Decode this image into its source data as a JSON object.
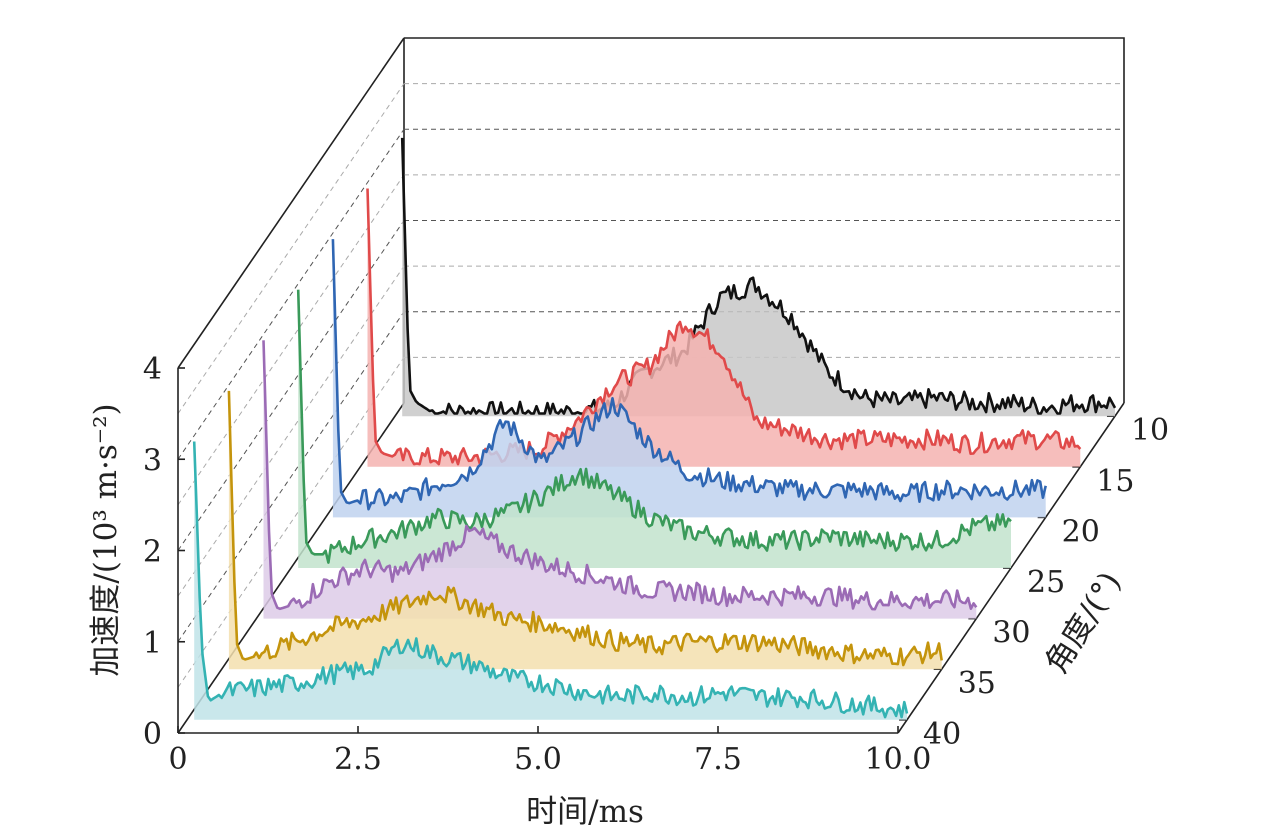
{
  "chart_data": {
    "type": "line",
    "style": "3d-waterfall",
    "title": "",
    "xlabel": "时间/ms",
    "ylabel": "加速度/(10³ m·s⁻²)",
    "zlabel": "角度/(°)",
    "xlim": [
      0,
      10.0
    ],
    "ylim": [
      0,
      4
    ],
    "x_ticks": [
      "0",
      "2.5",
      "5.0",
      "7.5",
      "10.0"
    ],
    "y_ticks": [
      "0",
      "1",
      "2",
      "3",
      "4"
    ],
    "z_ticks": [
      "10",
      "15",
      "20",
      "25",
      "30",
      "35",
      "40"
    ],
    "grid": true,
    "fill_under": true,
    "x": [
      0.1,
      0.2,
      0.3,
      0.5,
      1.0,
      1.5,
      2.0,
      2.5,
      3.0,
      3.5,
      4.0,
      4.5,
      5.0,
      5.5,
      6.0,
      6.5,
      7.0,
      7.5,
      8.0,
      8.5,
      9.0,
      9.5,
      10.0
    ],
    "series": [
      {
        "name": "10",
        "color": "#111111",
        "fill": "#c8c8c8",
        "values": [
          3.05,
          0.3,
          0.15,
          0.05,
          0.05,
          0.05,
          0.05,
          0.05,
          0.1,
          0.5,
          0.7,
          1.3,
          1.45,
          1.1,
          0.5,
          0.2,
          0.15,
          0.2,
          0.15,
          0.15,
          0.1,
          0.15,
          0.15
        ]
      },
      {
        "name": "15",
        "color": "#e04a4a",
        "fill": "#f4b3b0",
        "values": [
          3.05,
          0.3,
          0.15,
          0.1,
          0.1,
          0.1,
          0.15,
          0.2,
          0.5,
          0.9,
          1.1,
          1.6,
          1.3,
          0.5,
          0.4,
          0.3,
          0.3,
          0.3,
          0.3,
          0.25,
          0.3,
          0.3,
          0.25
        ]
      },
      {
        "name": "20",
        "color": "#2f66b3",
        "fill": "#bfd2ee",
        "values": [
          3.05,
          0.3,
          0.15,
          0.2,
          0.2,
          0.35,
          0.5,
          1.05,
          0.6,
          0.9,
          1.25,
          0.8,
          0.5,
          0.4,
          0.35,
          0.3,
          0.3,
          0.3,
          0.25,
          0.3,
          0.3,
          0.3,
          0.3
        ]
      },
      {
        "name": "25",
        "color": "#3a9a5a",
        "fill": "#c2e3cd",
        "values": [
          3.05,
          0.3,
          0.15,
          0.15,
          0.3,
          0.4,
          0.55,
          0.5,
          0.6,
          0.8,
          1.05,
          0.8,
          0.55,
          0.4,
          0.35,
          0.3,
          0.3,
          0.35,
          0.3,
          0.3,
          0.3,
          0.45,
          0.5
        ]
      },
      {
        "name": "30",
        "color": "#9b6bb5",
        "fill": "#ddcbe8",
        "values": [
          3.05,
          0.3,
          0.1,
          0.15,
          0.4,
          0.55,
          0.5,
          0.7,
          0.95,
          0.75,
          0.6,
          0.5,
          0.4,
          0.3,
          0.3,
          0.25,
          0.25,
          0.25,
          0.25,
          0.2,
          0.2,
          0.2,
          0.2
        ]
      },
      {
        "name": "35",
        "color": "#c4940c",
        "fill": "#f3dfae",
        "values": [
          3.05,
          0.3,
          0.1,
          0.15,
          0.3,
          0.45,
          0.55,
          0.7,
          0.85,
          0.7,
          0.55,
          0.5,
          0.4,
          0.3,
          0.25,
          0.3,
          0.3,
          0.3,
          0.25,
          0.2,
          0.15,
          0.15,
          0.2
        ]
      },
      {
        "name": "40",
        "color": "#34b3b3",
        "fill": "#bfe3e8",
        "values": [
          3.05,
          0.8,
          0.2,
          0.3,
          0.35,
          0.4,
          0.5,
          0.55,
          0.85,
          0.7,
          0.6,
          0.45,
          0.4,
          0.3,
          0.25,
          0.3,
          0.25,
          0.3,
          0.25,
          0.25,
          0.2,
          0.15,
          0.1
        ]
      }
    ]
  }
}
